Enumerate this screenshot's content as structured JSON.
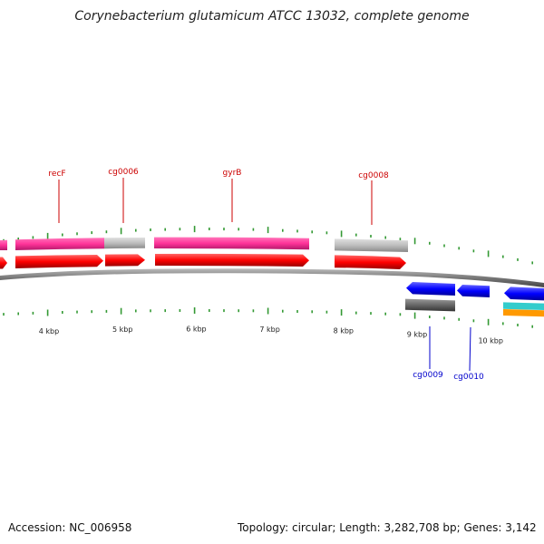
{
  "title": "Corynebacterium glutamicum ATCC 13032, complete genome",
  "footer": {
    "accession": "Accession: NC_006958",
    "stats": "Topology: circular; Length: 3,282,708 bp; Genes: 3,142"
  },
  "colors": {
    "forward_cds": "#ff1a1a",
    "forward_gene_pink": "#ff3399",
    "forward_gene_gray": "#bdbdbd",
    "reverse_cds": "#1a1aff",
    "reverse_gene_gray": "#777777",
    "cyan": "#33cccc",
    "orange": "#ff9900",
    "tick": "#339933",
    "forward_label": "#cc0000",
    "reverse_label": "#0000cc"
  },
  "scale_labels": [
    "4 kbp",
    "5 kbp",
    "6 kbp",
    "7 kbp",
    "8 kbp",
    "9 kbp",
    "10 kbp"
  ],
  "scale_kbp": [
    4,
    5,
    6,
    7,
    8,
    9,
    10
  ],
  "forward_labels": [
    "recF",
    "cg0006",
    "gyrB",
    "cg0008"
  ],
  "reverse_labels": [
    "cg0009",
    "cg0010"
  ]
}
